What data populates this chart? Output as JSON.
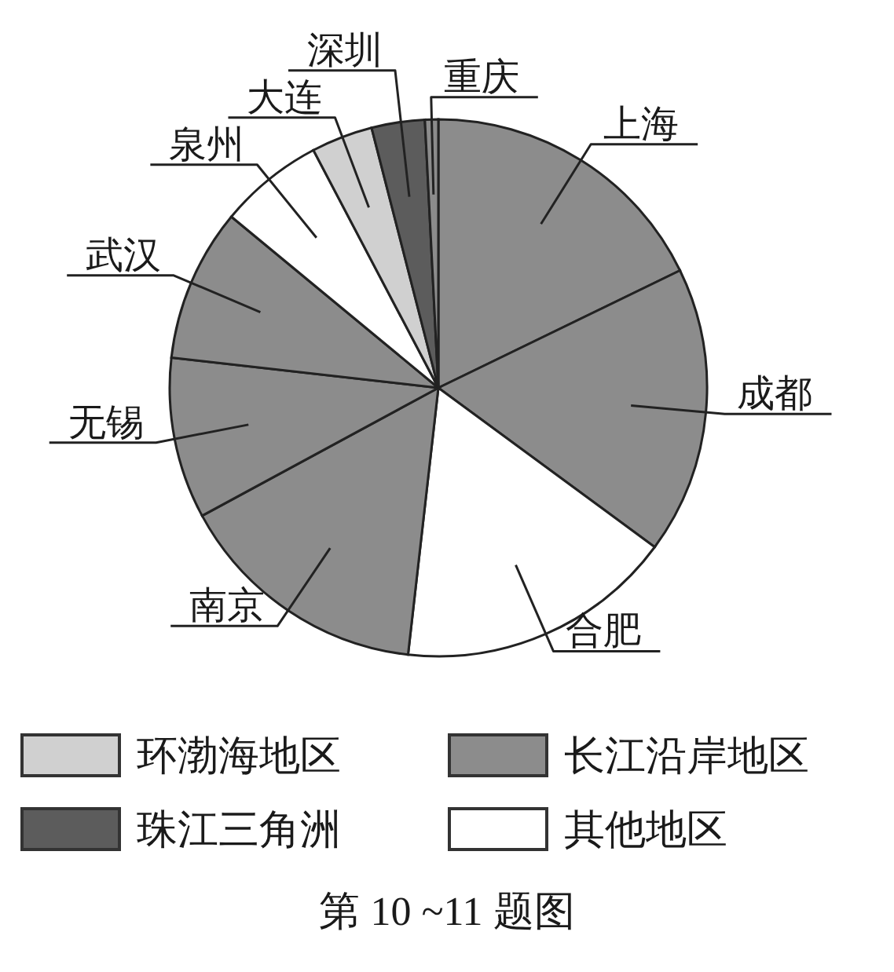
{
  "chart_data": {
    "type": "pie",
    "categories": [
      "上海",
      "成都",
      "合肥",
      "南京",
      "无锡",
      "武汉",
      "泉州",
      "大连",
      "深圳",
      "重庆"
    ],
    "values": [
      17.8,
      17.3,
      16.7,
      15.3,
      9.7,
      9.2,
      6.3,
      3.7,
      3.2,
      0.8
    ],
    "colors": [
      "#8c8c8c",
      "#8c8c8c",
      "#ffffff",
      "#8c8c8c",
      "#8c8c8c",
      "#8c8c8c",
      "#ffffff",
      "#d0d0d0",
      "#5c5c5c",
      "#8c8c8c"
    ],
    "annotations": [
      "环渤海地区",
      "长江沿岸地区",
      "珠江三角洲",
      "其他地区",
      "第 10 ~11 题图"
    ]
  }
}
